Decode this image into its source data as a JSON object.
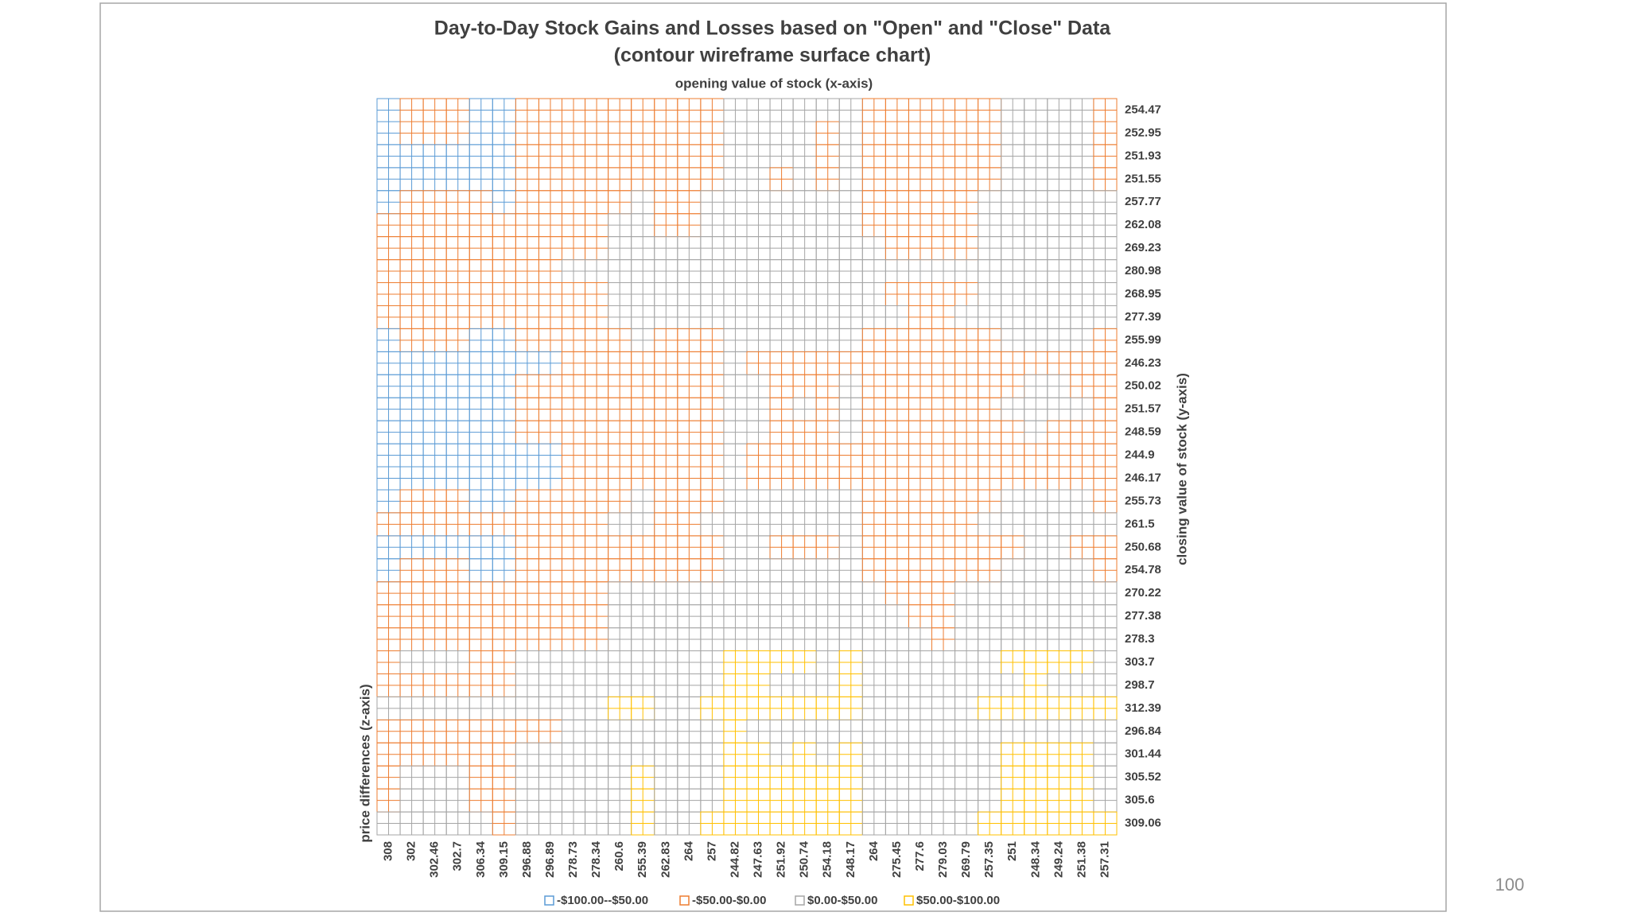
{
  "chart_data": {
    "type": "contour",
    "title": "Day-to-Day Stock Gains and Losses based on \"Open\" and \"Close\" Data",
    "subtitle": "(contour wireframe surface chart)",
    "x_label": "opening value of stock (x-axis)",
    "y_label": "closing value of stock (y-axis)",
    "z_label": "price differences (z-axis)",
    "x_categories": [
      308,
      302,
      302.46,
      302.7,
      306.34,
      309.15,
      296.88,
      296.89,
      278.73,
      278.34,
      260.6,
      255.39,
      262.83,
      264,
      257,
      244.82,
      247.63,
      251.92,
      250.74,
      254.18,
      248.17,
      264,
      275.45,
      277.6,
      279.03,
      269.79,
      257.35,
      251,
      248.34,
      249.24,
      251.38,
      257.31
    ],
    "y_categories": [
      254.47,
      252.95,
      251.93,
      251.55,
      257.77,
      262.08,
      269.23,
      280.98,
      268.95,
      277.39,
      255.99,
      246.23,
      250.02,
      251.57,
      248.59,
      244.9,
      246.17,
      255.73,
      261.5,
      250.68,
      254.78,
      270.22,
      277.38,
      278.3,
      303.7,
      298.7,
      312.39,
      296.84,
      301.44,
      305.52,
      305.6,
      309.06
    ],
    "bands": [
      {
        "label": "-$100.00--$50.00",
        "min": -100,
        "max": -50,
        "color": "#5b9bd5"
      },
      {
        "label": "-$50.00-$0.00",
        "min": -50,
        "max": 0,
        "color": "#ed7d31"
      },
      {
        "label": "$0.00-$50.00",
        "min": 0,
        "max": 50,
        "color": "#a5a5a5"
      },
      {
        "label": "$50.00-$100.00",
        "min": 50,
        "max": 100,
        "color": "#ffc000"
      }
    ]
  },
  "page_number": "100"
}
